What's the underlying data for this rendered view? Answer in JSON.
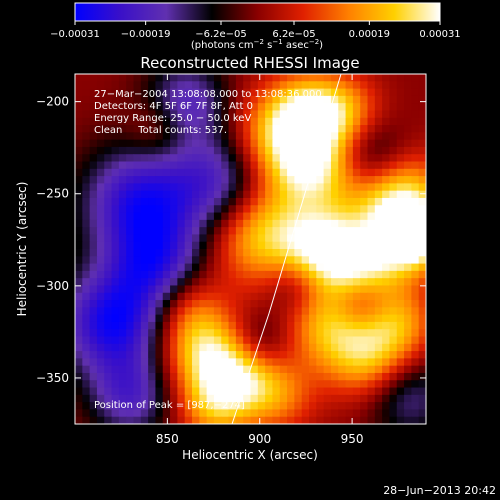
{
  "chart_data": {
    "type": "heatmap",
    "title": "Reconstructed RHESSI Image",
    "xlabel": "Heliocentric X (arcsec)",
    "ylabel": "Heliocentric Y (arcsec)",
    "xlim": [
      800,
      990
    ],
    "ylim": [
      -375,
      -185
    ],
    "x_ticks": [
      {
        "value": 850,
        "label": "850"
      },
      {
        "value": 900,
        "label": "900"
      },
      {
        "value": 950,
        "label": "950"
      }
    ],
    "y_ticks": [
      {
        "value": -200,
        "label": "−200"
      },
      {
        "value": -250,
        "label": "−250"
      },
      {
        "value": -300,
        "label": "−300"
      },
      {
        "value": -350,
        "label": "−350"
      }
    ],
    "colorbar": {
      "range": [
        -0.00031,
        0.00031
      ],
      "ticks": [
        {
          "value": -0.00031,
          "label": "−0.00031"
        },
        {
          "value": -0.00019,
          "label": "−0.00019"
        },
        {
          "value": -6.2e-05,
          "label": "−6.2e−05"
        },
        {
          "value": 6.2e-05,
          "label": "6.2e−05"
        },
        {
          "value": 0.00019,
          "label": "0.00019"
        },
        {
          "value": 0.00031,
          "label": "0.00031"
        }
      ],
      "colors": [
        "#0000ff",
        "#3a10c8",
        "#6030b0",
        "#000000",
        "#8a0000",
        "#e02000",
        "#ff8000",
        "#ffd000",
        "#ffffff"
      ]
    },
    "annotations": [
      "27−Mar−2004 13:08:08.000 to 13:08:36.000",
      "Detectors: 4F 5F 6F 7F 8F, Att 0",
      "Energy Range: 25.0 − 50.0 keV",
      "Clean     Total counts: 537.",
      "Position of Peak = [987,−274]"
    ],
    "limb_line": [
      {
        "x": 885,
        "y": -375
      },
      {
        "x": 905,
        "y": -315
      },
      {
        "x": 925,
        "y": -248
      },
      {
        "x": 944,
        "y": -185
      }
    ],
    "peak": {
      "x": 987,
      "y": -274
    },
    "blobs": [
      {
        "x": 910,
        "y": -220,
        "v": 0.00022,
        "r": 18
      },
      {
        "x": 930,
        "y": -235,
        "v": 0.00024,
        "r": 16
      },
      {
        "x": 900,
        "y": -270,
        "v": 0.00026,
        "r": 20
      },
      {
        "x": 935,
        "y": -280,
        "v": 0.00028,
        "r": 16
      },
      {
        "x": 975,
        "y": -255,
        "v": 0.0003,
        "r": 18
      },
      {
        "x": 985,
        "y": -274,
        "v": 0.00031,
        "r": 12
      },
      {
        "x": 960,
        "y": -290,
        "v": 0.0002,
        "r": 15
      },
      {
        "x": 940,
        "y": -320,
        "v": 0.00023,
        "r": 18
      },
      {
        "x": 960,
        "y": -340,
        "v": 0.00018,
        "r": 16
      },
      {
        "x": 975,
        "y": -320,
        "v": 0.00016,
        "r": 14
      },
      {
        "x": 870,
        "y": -335,
        "v": 0.00025,
        "r": 16
      },
      {
        "x": 890,
        "y": -350,
        "v": 0.00019,
        "r": 14
      },
      {
        "x": 875,
        "y": -365,
        "v": 0.00018,
        "r": 14
      },
      {
        "x": 860,
        "y": -310,
        "v": 0.00012,
        "r": 14
      },
      {
        "x": 925,
        "y": -205,
        "v": 0.0002,
        "r": 14
      },
      {
        "x": 945,
        "y": -205,
        "v": 0.00017,
        "r": 14
      },
      {
        "x": 910,
        "y": -360,
        "v": 0.00014,
        "r": 14
      },
      {
        "x": 845,
        "y": -215,
        "v": 9e-05,
        "r": 12
      },
      {
        "x": 880,
        "y": -245,
        "v": -0.00022,
        "r": 20
      },
      {
        "x": 835,
        "y": -255,
        "v": -0.00026,
        "r": 22
      },
      {
        "x": 820,
        "y": -320,
        "v": -0.00028,
        "r": 20
      },
      {
        "x": 845,
        "y": -290,
        "v": -0.0002,
        "r": 18
      },
      {
        "x": 860,
        "y": -200,
        "v": -0.00018,
        "r": 16
      },
      {
        "x": 960,
        "y": -230,
        "v": -0.00014,
        "r": 14
      },
      {
        "x": 955,
        "y": -310,
        "v": -0.00016,
        "r": 12
      },
      {
        "x": 920,
        "y": -300,
        "v": -0.00012,
        "r": 12
      },
      {
        "x": 980,
        "y": -360,
        "v": -0.00015,
        "r": 16
      },
      {
        "x": 830,
        "y": -360,
        "v": -0.00018,
        "r": 16
      },
      {
        "x": 900,
        "y": -330,
        "v": -0.0001,
        "r": 12
      }
    ]
  },
  "footer": {
    "timestamp": "28−Jun−2013 20:42"
  },
  "colorbar_unit_html": "(photons cm<tspan baseline-shift=\"super\" font-size=\"7\">−2</tspan> s<tspan baseline-shift=\"super\" font-size=\"7\">−1</tspan> asec<tspan baseline-shift=\"super\" font-size=\"7\">−2</tspan>)"
}
